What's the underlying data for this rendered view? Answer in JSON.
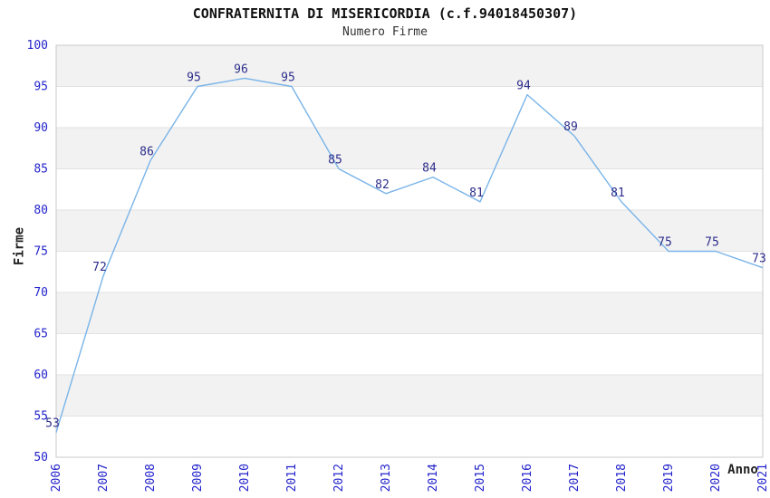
{
  "page": {
    "title": "CONFRATERNITA DI MISERICORDIA (c.f.94018450307)",
    "subtitle": "Numero Firme"
  },
  "chart_data": {
    "type": "line",
    "title": "CONFRATERNITA DI MISERICORDIA (c.f.94018450307)",
    "subtitle": "Numero Firme",
    "xlabel": "Anno",
    "ylabel": "Firme",
    "categories": [
      "2006",
      "2007",
      "2008",
      "2009",
      "2010",
      "2011",
      "2012",
      "2013",
      "2014",
      "2015",
      "2016",
      "2017",
      "2018",
      "2019",
      "2020",
      "2021"
    ],
    "values": [
      53,
      72,
      86,
      95,
      96,
      95,
      85,
      82,
      84,
      81,
      94,
      89,
      81,
      75,
      75,
      73
    ],
    "ylim": [
      50,
      100
    ],
    "ytick_step": 5,
    "grid": "horizontal",
    "alternating_bands": true,
    "legend_position": "none",
    "data_labels_visible": true,
    "colors": {
      "line": "#79b4e8",
      "tick_label": "#2323cc",
      "data_label": "#2d2d8c",
      "band": "#f2f2f2",
      "gridline": "#e2e2e2",
      "border": "#c8c8c8",
      "title": "#111111",
      "axis_title": "#222222"
    }
  }
}
